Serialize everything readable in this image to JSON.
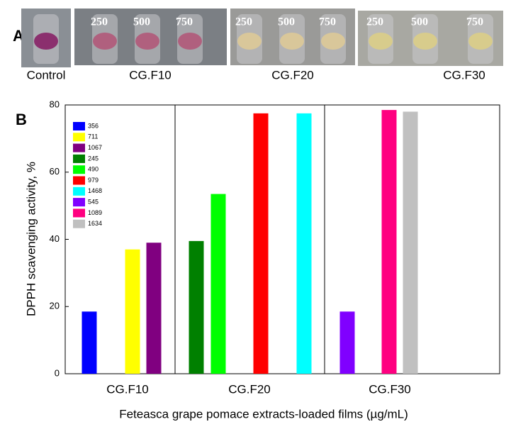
{
  "photo_panel": {
    "label": "A",
    "images": [
      {
        "label": "Control"
      },
      {
        "label": "CG.F10",
        "concentrations": [
          "250",
          "500",
          "750"
        ]
      },
      {
        "label": "CG.F20",
        "concentrations": [
          "250",
          "500",
          "750"
        ]
      },
      {
        "label": "CG.F30",
        "concentrations": [
          "250",
          "500",
          "750"
        ]
      }
    ]
  },
  "chart_data": {
    "type": "bar",
    "panel_label": "B",
    "x_label": "Feteasca grape pomace extracts-loaded films (µg/mL)",
    "y_label": "DPPH scavenging activity, %",
    "categories": [
      "CG.F10",
      "CG.F20",
      "CG.F30"
    ],
    "ylim": [
      0,
      80
    ],
    "yticks": [
      0,
      20,
      40,
      60,
      80
    ],
    "series": [
      {
        "name": "356",
        "color": "#0000ff",
        "values": [
          18.5,
          null,
          null
        ]
      },
      {
        "name": "711",
        "color": "#ffff00",
        "values": [
          37,
          null,
          null
        ]
      },
      {
        "name": "1067",
        "color": "#800080",
        "values": [
          39,
          null,
          null
        ]
      },
      {
        "name": "245",
        "color": "#008000",
        "values": [
          null,
          39.5,
          null
        ]
      },
      {
        "name": "490",
        "color": "#00ff00",
        "values": [
          null,
          53.5,
          null
        ]
      },
      {
        "name": "979",
        "color": "#ff0000",
        "values": [
          null,
          77.5,
          null
        ]
      },
      {
        "name": "1468",
        "color": "#00ffff",
        "values": [
          null,
          77.5,
          null
        ]
      },
      {
        "name": "545",
        "color": "#8000ff",
        "values": [
          null,
          null,
          18.5
        ]
      },
      {
        "name": "1089",
        "color": "#ff0080",
        "values": [
          null,
          null,
          78.5
        ]
      },
      {
        "name": "1634",
        "color": "#c0c0c0",
        "values": [
          null,
          null,
          78
        ]
      }
    ]
  }
}
